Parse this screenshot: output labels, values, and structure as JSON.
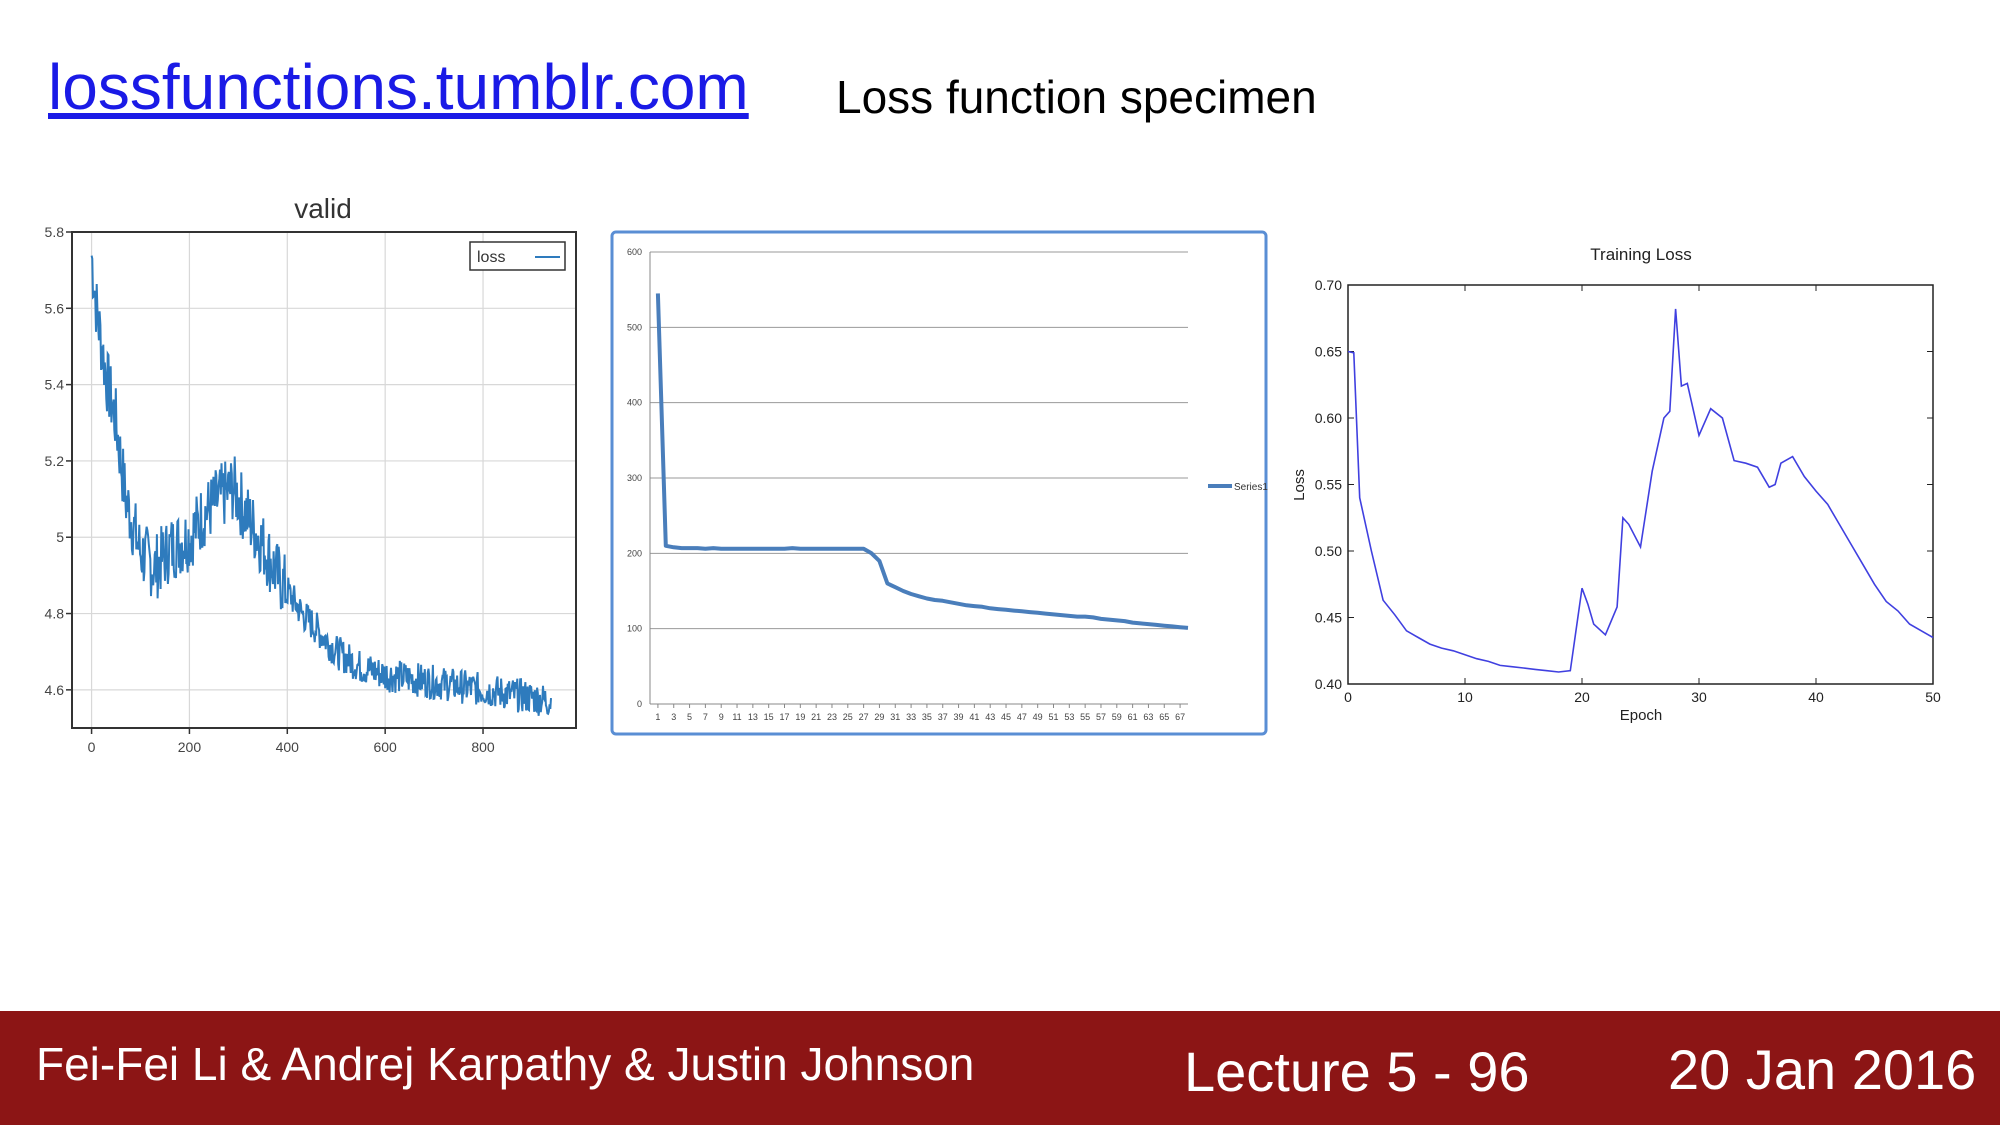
{
  "header": {
    "link_text": "lossfunctions.tumblr.com",
    "subtitle": "Loss function specimen"
  },
  "footer": {
    "authors": "Fei-Fei Li & Andrej Karpathy & Justin Johnson",
    "lecture": "Lecture 5 - 96",
    "date": "20 Jan 2016"
  },
  "colors": {
    "link": "#1a1ae6",
    "footer_bg": "#8c1515",
    "series_blue": "#2e7bbd",
    "excel_blue": "#4a7ebb",
    "mpl_blue": "#4040e0"
  },
  "chart_data": [
    {
      "type": "line",
      "title": "valid",
      "xlabel": "",
      "ylabel": "",
      "xlim": [
        -40,
        990
      ],
      "ylim": [
        4.5,
        5.8
      ],
      "xticks": [
        "0",
        "200",
        "400",
        "600",
        "800"
      ],
      "yticks": [
        "4.6",
        "4.8",
        "5",
        "5.2",
        "5.4",
        "5.6",
        "5.8"
      ],
      "grid": true,
      "legend": "top-right",
      "series": [
        {
          "name": "loss",
          "x": [
            0,
            10,
            30,
            50,
            70,
            100,
            130,
            160,
            200,
            230,
            260,
            290,
            320,
            350,
            380,
            400,
            430,
            460,
            500,
            550,
            600,
            650,
            700,
            750,
            800,
            850,
            900,
            940
          ],
          "y": [
            5.74,
            5.6,
            5.42,
            5.3,
            5.1,
            4.96,
            4.92,
            4.97,
            5.0,
            5.06,
            5.1,
            5.13,
            5.05,
            4.98,
            4.9,
            4.86,
            4.8,
            4.76,
            4.7,
            4.66,
            4.64,
            4.63,
            4.62,
            4.61,
            4.6,
            4.59,
            4.58,
            4.57
          ]
        }
      ]
    },
    {
      "type": "line",
      "title": "",
      "xlabel": "",
      "ylabel": "",
      "xlim": [
        0,
        68
      ],
      "ylim": [
        0,
        600
      ],
      "xticks": [
        "1",
        "3",
        "5",
        "7",
        "9",
        "11",
        "13",
        "15",
        "17",
        "19",
        "21",
        "23",
        "25",
        "27",
        "29",
        "31",
        "33",
        "35",
        "37",
        "39",
        "41",
        "43",
        "45",
        "47",
        "49",
        "51",
        "53",
        "55",
        "57",
        "59",
        "61",
        "63",
        "65",
        "67"
      ],
      "yticks": [
        "0",
        "100",
        "200",
        "300",
        "400",
        "500",
        "600"
      ],
      "grid": true,
      "legend": "right",
      "series": [
        {
          "name": "Series1",
          "x": [
            1,
            2,
            3,
            4,
            5,
            6,
            7,
            8,
            9,
            10,
            11,
            12,
            13,
            14,
            15,
            16,
            17,
            18,
            19,
            20,
            21,
            22,
            23,
            24,
            25,
            26,
            27,
            28,
            29,
            30,
            31,
            32,
            33,
            34,
            35,
            36,
            37,
            38,
            39,
            40,
            41,
            42,
            43,
            44,
            45,
            46,
            47,
            48,
            49,
            50,
            51,
            52,
            53,
            54,
            55,
            56,
            57,
            58,
            59,
            60,
            61,
            62,
            63,
            64,
            65,
            66,
            67,
            68
          ],
          "y": [
            545,
            210,
            208,
            207,
            207,
            207,
            206,
            207,
            206,
            206,
            206,
            206,
            206,
            206,
            206,
            206,
            206,
            207,
            206,
            206,
            206,
            206,
            206,
            206,
            206,
            206,
            206,
            200,
            190,
            160,
            155,
            150,
            146,
            143,
            140,
            138,
            137,
            135,
            133,
            131,
            130,
            129,
            127,
            126,
            125,
            124,
            123,
            122,
            121,
            120,
            119,
            118,
            117,
            116,
            116,
            115,
            113,
            112,
            111,
            110,
            108,
            107,
            106,
            105,
            104,
            103,
            102,
            101
          ]
        }
      ]
    },
    {
      "type": "line",
      "title": "Training Loss",
      "xlabel": "Epoch",
      "ylabel": "Loss",
      "xlim": [
        0,
        50
      ],
      "ylim": [
        0.4,
        0.7
      ],
      "xticks": [
        "0",
        "10",
        "20",
        "30",
        "40",
        "50"
      ],
      "yticks": [
        "0.40",
        "0.45",
        "0.50",
        "0.55",
        "0.60",
        "0.65",
        "0.70"
      ],
      "grid": false,
      "series": [
        {
          "x": [
            0,
            0.5,
            1,
            2,
            3,
            4,
            5,
            6,
            7,
            8,
            9,
            10,
            11,
            12,
            13,
            14,
            15,
            16,
            17,
            18,
            19,
            20,
            20.5,
            21,
            22,
            23,
            23.5,
            24,
            25,
            26,
            27,
            27.5,
            28,
            28.5,
            29,
            30,
            31,
            32,
            33,
            34,
            35,
            36,
            36.5,
            37,
            38,
            39,
            40,
            41,
            42,
            43,
            44,
            45,
            46,
            47,
            48,
            49,
            50
          ],
          "y": [
            0.65,
            0.649,
            0.54,
            0.5,
            0.463,
            0.452,
            0.44,
            0.435,
            0.43,
            0.427,
            0.425,
            0.422,
            0.419,
            0.417,
            0.414,
            0.413,
            0.412,
            0.411,
            0.41,
            0.409,
            0.41,
            0.472,
            0.46,
            0.445,
            0.437,
            0.458,
            0.525,
            0.52,
            0.503,
            0.56,
            0.6,
            0.605,
            0.682,
            0.624,
            0.626,
            0.587,
            0.607,
            0.6,
            0.568,
            0.566,
            0.563,
            0.548,
            0.55,
            0.566,
            0.571,
            0.556,
            0.545,
            0.535,
            0.52,
            0.505,
            0.49,
            0.475,
            0.462,
            0.455,
            0.445,
            0.44,
            0.435
          ]
        }
      ]
    }
  ]
}
